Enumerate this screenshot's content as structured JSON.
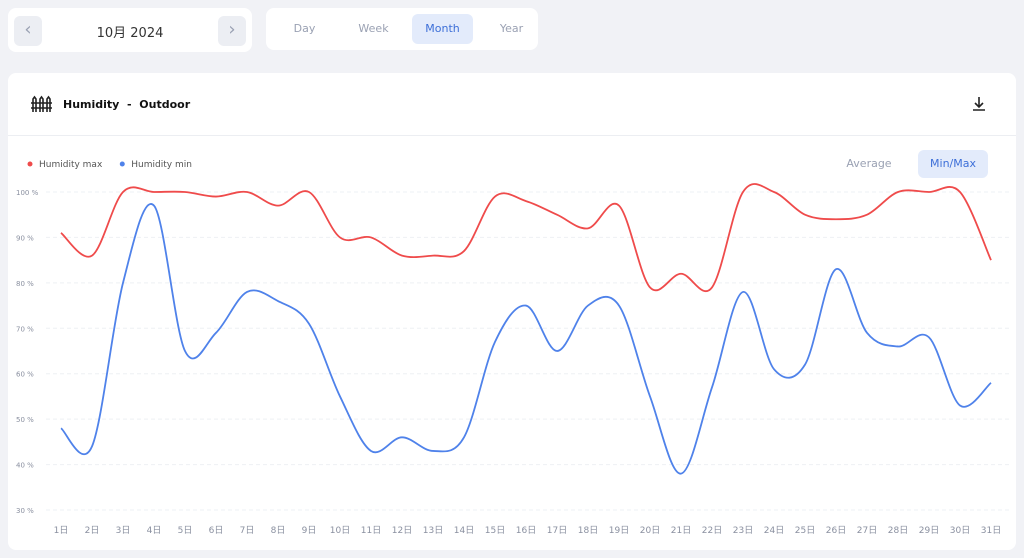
{
  "header": {
    "month": "10月 2024",
    "tabs": [
      "Day",
      "Week",
      "Month",
      "Year"
    ],
    "active_tab": "Month"
  },
  "card": {
    "title": "Humidity",
    "separator": "-",
    "location": "Outdoor",
    "toggles": [
      "Average",
      "Min/Max"
    ],
    "active_toggle": "Min/Max"
  },
  "chart_data": {
    "type": "line",
    "smooth": true,
    "categories": [
      "1日",
      "2日",
      "3日",
      "4日",
      "5日",
      "6日",
      "7日",
      "8日",
      "9日",
      "10日",
      "11日",
      "12日",
      "13日",
      "14日",
      "15日",
      "16日",
      "17日",
      "18日",
      "19日",
      "20日",
      "21日",
      "22日",
      "23日",
      "24日",
      "25日",
      "26日",
      "27日",
      "28日",
      "29日",
      "30日",
      "31日"
    ],
    "series": [
      {
        "name": "Humidity max",
        "color": "#ef4b4b",
        "values": [
          91,
          86,
          100,
          100,
          100,
          99,
          100,
          97,
          100,
          90,
          90,
          86,
          86,
          87,
          99,
          98,
          95,
          92,
          97,
          79,
          82,
          79,
          100,
          100,
          95,
          94,
          95,
          100,
          100,
          100,
          85
        ]
      },
      {
        "name": "Humidity min",
        "color": "#4f82ea",
        "values": [
          48,
          44,
          80,
          97,
          65,
          69,
          78,
          76,
          71,
          55,
          43,
          46,
          43,
          46,
          67,
          75,
          65,
          75,
          75,
          55,
          38,
          57,
          78,
          61,
          62,
          83,
          69,
          66,
          68,
          53,
          58
        ]
      }
    ],
    "ylim": [
      30,
      100
    ],
    "yticks": [
      {
        "value": 30,
        "label": "30 %"
      },
      {
        "value": 40,
        "label": "40 %"
      },
      {
        "value": 50,
        "label": "50 %"
      },
      {
        "value": 60,
        "label": "60 %"
      },
      {
        "value": 70,
        "label": "70 %"
      },
      {
        "value": 80,
        "label": "80 %"
      },
      {
        "value": 90,
        "label": "90 %"
      },
      {
        "value": 100,
        "label": "100 %"
      }
    ],
    "grid": true,
    "legend": "top-left"
  }
}
